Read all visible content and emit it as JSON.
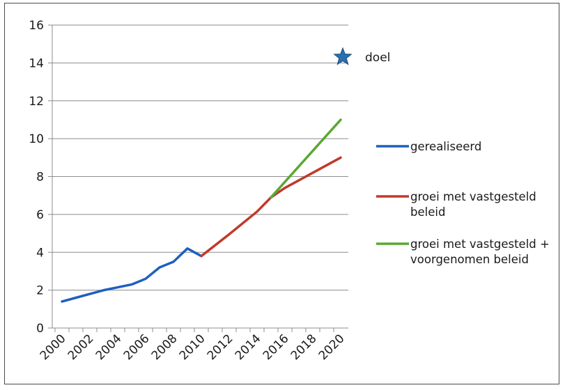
{
  "chart_data": {
    "type": "line",
    "title": "",
    "xlabel": "",
    "ylabel": "",
    "xlim": [
      2000,
      2020
    ],
    "ylim": [
      0,
      16
    ],
    "x_ticks": [
      "2000",
      "2002",
      "2004",
      "2006",
      "2008",
      "2010",
      "2012",
      "2014",
      "2016",
      "2018",
      "2020"
    ],
    "y_ticks": [
      "0",
      "2",
      "4",
      "6",
      "8",
      "10",
      "12",
      "14",
      "16"
    ],
    "grid": "horizontal",
    "legend_position": "right",
    "series": [
      {
        "name": "gerealiseerd",
        "legend_lines": [
          "gerealiseerd"
        ],
        "color": "#1f5fbf",
        "points": [
          [
            2000,
            1.4
          ],
          [
            2001,
            1.6
          ],
          [
            2002,
            1.8
          ],
          [
            2003,
            2.0
          ],
          [
            2004,
            2.15
          ],
          [
            2005,
            2.3
          ],
          [
            2006,
            2.6
          ],
          [
            2007,
            3.2
          ],
          [
            2008,
            3.5
          ],
          [
            2009,
            4.2
          ],
          [
            2010,
            3.8
          ]
        ]
      },
      {
        "name": "groei met vastgesteld beleid",
        "legend_lines": [
          "groei met vastgesteld",
          "beleid"
        ],
        "color": "#c0392b",
        "points": [
          [
            2010,
            3.8
          ],
          [
            2012,
            4.95
          ],
          [
            2014,
            6.15
          ],
          [
            2015,
            6.9
          ],
          [
            2016,
            7.4
          ],
          [
            2018,
            8.2
          ],
          [
            2020,
            9.0
          ]
        ]
      },
      {
        "name": "groei met vastgesteld + voorgenomen beleid",
        "legend_lines": [
          "groei met vastgesteld +",
          "voorgenomen beleid"
        ],
        "color": "#5aa832",
        "points": [
          [
            2015,
            6.9
          ],
          [
            2020,
            11.0
          ]
        ]
      }
    ],
    "target": {
      "label": "doel",
      "x": 2020,
      "y": 14.2,
      "color": "#2a6fb0"
    }
  }
}
